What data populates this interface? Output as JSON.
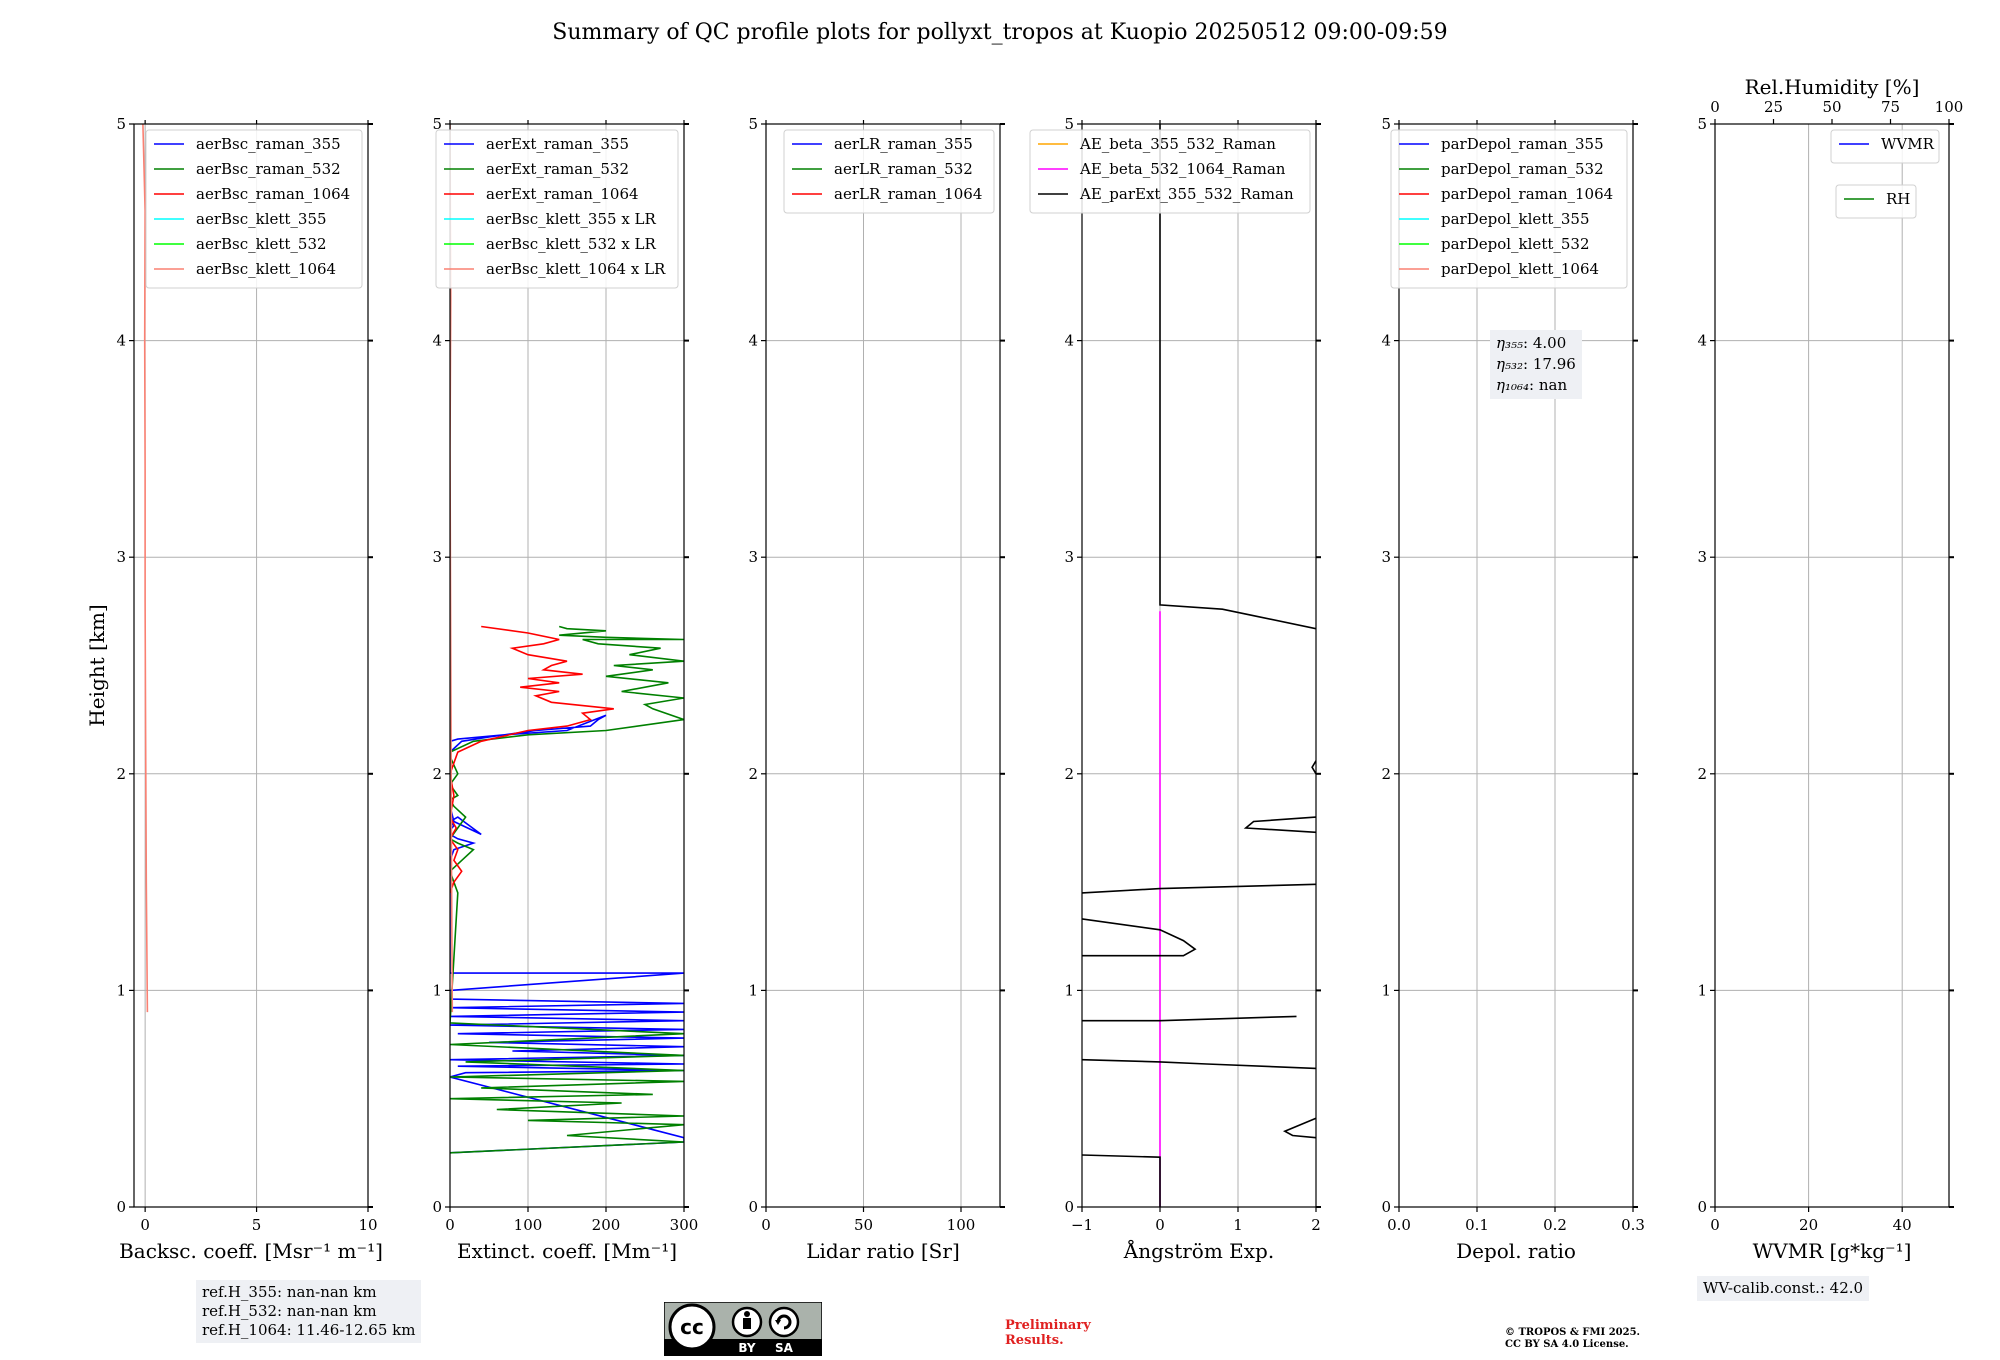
{
  "title": "Summary of QC profile plots for pollyxt_tropos at Kuopio 20250512 09:00-09:59",
  "colors": {
    "blue": "#0000ff",
    "green": "#008000",
    "red": "#ff0000",
    "cyan": "#00ffff",
    "lime": "#00ff00",
    "salmon": "#fa8072",
    "orange": "#ffa500",
    "magenta": "#ff00ff",
    "black": "#000000",
    "grid": "#b0b0b0"
  },
  "chart_data": [
    {
      "id": "backscatter",
      "type": "line",
      "xlabel": "Backsc. coeff. [Msr$^{-1}$ m$^{-1}$]",
      "xlabel_plain": "Backsc. coeff. [Msr⁻¹ m⁻¹]",
      "ylabel": "Height [km]",
      "xlim": [
        -0.5,
        10
      ],
      "ylim": [
        0,
        5
      ],
      "xticks": [
        0,
        5,
        10
      ],
      "xticklabels": [
        "0",
        "5",
        "10"
      ],
      "yticks": [
        0,
        1,
        2,
        3,
        4,
        5
      ],
      "yticklabels": [
        "0",
        "1",
        "2",
        "3",
        "4",
        "5"
      ],
      "legend": [
        "aerBsc_raman_355",
        "aerBsc_raman_532",
        "aerBsc_raman_1064",
        "aerBsc_klett_355",
        "aerBsc_klett_532",
        "aerBsc_klett_1064"
      ],
      "legend_colors": [
        "blue",
        "green",
        "red",
        "cyan",
        "lime",
        "salmon"
      ],
      "legend_position": "top-right",
      "series": [
        {
          "name": "aerBsc_klett_1064",
          "color": "salmon",
          "x": [
            0.1,
            0.05,
            0.02,
            0.0,
            0.0,
            -0.02,
            0.0,
            -0.1
          ],
          "y": [
            0.9,
            1.5,
            2.2,
            2.8,
            3.4,
            4.0,
            4.6,
            5.0
          ]
        }
      ]
    },
    {
      "id": "extinction",
      "type": "line",
      "xlabel": "Extinct. coeff. [Mm$^{-1}$]",
      "xlabel_plain": "Extinct. coeff. [Mm⁻¹]",
      "xlim": [
        0,
        300
      ],
      "ylim": [
        0,
        5
      ],
      "xticks": [
        0,
        100,
        200,
        300
      ],
      "xticklabels": [
        "0",
        "100",
        "200",
        "300"
      ],
      "yticks": [
        0,
        1,
        2,
        3,
        4,
        5
      ],
      "yticklabels": [
        "0",
        "1",
        "2",
        "3",
        "4",
        "5"
      ],
      "legend": [
        "aerExt_raman_355",
        "aerExt_raman_532",
        "aerExt_raman_1064",
        "aerBsc_klett_355 x LR",
        "aerBsc_klett_532 x LR",
        "aerBsc_klett_1064 x LR"
      ],
      "legend_colors": [
        "blue",
        "green",
        "red",
        "cyan",
        "lime",
        "salmon"
      ],
      "legend_position": "top-right",
      "series": [
        {
          "name": "aerExt_raman_355",
          "color": "blue",
          "x": [
            0,
            300,
            300,
            0,
            20,
            300,
            10,
            300,
            0,
            300,
            80,
            300,
            50,
            300,
            10,
            300,
            0,
            300,
            0,
            300,
            0,
            300,
            0,
            0,
            300,
            0,
            0,
            5,
            30,
            10,
            0,
            0,
            5,
            0,
            10,
            40,
            5,
            0,
            0,
            15,
            50,
            110,
            180,
            190,
            200,
            150,
            70,
            10,
            0
          ],
          "y": [
            0.25,
            0.3,
            0.32,
            0.6,
            0.62,
            0.63,
            0.65,
            0.66,
            0.68,
            0.7,
            0.72,
            0.74,
            0.76,
            0.78,
            0.8,
            0.82,
            0.84,
            0.86,
            0.88,
            0.9,
            0.92,
            0.94,
            0.96,
            1.0,
            1.08,
            1.08,
            1.6,
            1.65,
            1.68,
            1.7,
            1.72,
            1.74,
            1.76,
            1.78,
            1.8,
            1.72,
            1.78,
            1.85,
            2.1,
            2.15,
            2.17,
            2.2,
            2.22,
            2.25,
            2.27,
            2.2,
            2.18,
            2.16,
            2.15
          ]
        },
        {
          "name": "aerExt_raman_532",
          "color": "green",
          "x": [
            0,
            300,
            150,
            300,
            100,
            300,
            60,
            220,
            0,
            260,
            40,
            300,
            0,
            300,
            20,
            300,
            0,
            300,
            0,
            10,
            5,
            0,
            15,
            30,
            10,
            0,
            20,
            5,
            0,
            10,
            0,
            10,
            0,
            0,
            30,
            100,
            200,
            300,
            260,
            250,
            300,
            220,
            280,
            200,
            260,
            210,
            300,
            230,
            270,
            190,
            170,
            300,
            200,
            140,
            200,
            150,
            140
          ],
          "y": [
            0.25,
            0.3,
            0.33,
            0.38,
            0.4,
            0.42,
            0.45,
            0.48,
            0.5,
            0.52,
            0.55,
            0.58,
            0.6,
            0.63,
            0.67,
            0.7,
            0.75,
            0.8,
            0.85,
            1.45,
            1.5,
            1.55,
            1.6,
            1.65,
            1.68,
            1.7,
            1.8,
            1.85,
            1.88,
            1.9,
            1.95,
            2.0,
            2.08,
            2.1,
            2.15,
            2.18,
            2.2,
            2.25,
            2.3,
            2.32,
            2.35,
            2.38,
            2.42,
            2.45,
            2.48,
            2.5,
            2.52,
            2.55,
            2.58,
            2.6,
            2.62,
            2.62,
            2.63,
            2.64,
            2.66,
            2.67,
            2.68
          ]
        },
        {
          "name": "aerExt_raman_1064",
          "color": "red",
          "x": [
            0,
            5,
            15,
            5,
            10,
            0,
            8,
            0,
            5,
            0,
            10,
            40,
            100,
            150,
            180,
            170,
            210,
            130,
            110,
            140,
            90,
            140,
            100,
            170,
            120,
            130,
            150,
            100,
            80,
            120,
            140,
            100,
            40
          ],
          "y": [
            1.45,
            1.5,
            1.55,
            1.6,
            1.65,
            1.7,
            1.75,
            1.8,
            1.9,
            2.0,
            2.1,
            2.15,
            2.2,
            2.22,
            2.25,
            2.28,
            2.3,
            2.33,
            2.36,
            2.38,
            2.4,
            2.42,
            2.44,
            2.46,
            2.48,
            2.5,
            2.52,
            2.55,
            2.58,
            2.6,
            2.62,
            2.65,
            2.68
          ]
        },
        {
          "name": "aerBsc_klett_1064 x LR",
          "color": "salmon",
          "x": [
            3,
            2,
            1,
            0,
            1,
            0
          ],
          "y": [
            0.9,
            1.5,
            2.5,
            3.5,
            4.2,
            5.0
          ]
        }
      ]
    },
    {
      "id": "lidar-ratio",
      "type": "line",
      "xlabel": "Lidar ratio [Sr]",
      "xlim": [
        0,
        120
      ],
      "ylim": [
        0,
        5
      ],
      "xticks": [
        0,
        50,
        100
      ],
      "xticklabels": [
        "0",
        "50",
        "100"
      ],
      "yticks": [
        0,
        1,
        2,
        3,
        4,
        5
      ],
      "yticklabels": [
        "0",
        "1",
        "2",
        "3",
        "4",
        "5"
      ],
      "legend": [
        "aerLR_raman_355",
        "aerLR_raman_532",
        "aerLR_raman_1064"
      ],
      "legend_colors": [
        "blue",
        "green",
        "red"
      ],
      "legend_position": "top-right",
      "series": []
    },
    {
      "id": "angstrom",
      "type": "line",
      "xlabel": "Ångström Exp.",
      "xlim": [
        -1,
        2
      ],
      "ylim": [
        0,
        5
      ],
      "xticks": [
        -1,
        0,
        1,
        2
      ],
      "xticklabels": [
        "−1",
        "0",
        "1",
        "2"
      ],
      "yticks": [
        0,
        1,
        2,
        3,
        4,
        5
      ],
      "yticklabels": [
        "0",
        "1",
        "2",
        "3",
        "4",
        "5"
      ],
      "legend": [
        "AE_beta_355_532_Raman",
        "AE_beta_532_1064_Raman",
        "AE_parExt_355_532_Raman"
      ],
      "legend_colors": [
        "orange",
        "magenta",
        "black"
      ],
      "legend_position": "top-right",
      "series": [
        {
          "name": "AE_beta_532_1064_Raman",
          "color": "magenta",
          "x": [
            0,
            0
          ],
          "y": [
            0.0,
            2.75
          ]
        },
        {
          "name": "AE_parExt_355_532_Raman",
          "color": "black",
          "x": [
            0,
            0,
            -1,
            null,
            2,
            1.7,
            1.6,
            1.8,
            2,
            null,
            2,
            0.6,
            0,
            -1,
            null,
            1.75,
            0,
            -1,
            null,
            -1,
            0.3,
            0.45,
            0.3,
            0,
            -1,
            null,
            2,
            0,
            -1,
            null,
            2,
            1.1,
            1.2,
            2,
            null,
            2,
            1.95,
            2,
            null,
            2,
            1.2,
            0.8,
            0,
            0
          ],
          "y": [
            0.0,
            0.23,
            0.24,
            null,
            0.32,
            0.33,
            0.35,
            0.38,
            0.41,
            null,
            0.64,
            0.66,
            0.67,
            0.68,
            null,
            0.88,
            0.86,
            0.86,
            null,
            1.16,
            1.16,
            1.19,
            1.23,
            1.28,
            1.33,
            null,
            1.49,
            1.47,
            1.45,
            null,
            1.73,
            1.75,
            1.78,
            1.8,
            null,
            2.0,
            2.03,
            2.06,
            null,
            2.67,
            2.73,
            2.76,
            2.78,
            5.0
          ]
        }
      ]
    },
    {
      "id": "depol",
      "type": "line",
      "xlabel": "Depol. ratio",
      "xlim": [
        0,
        0.3
      ],
      "ylim": [
        0,
        5
      ],
      "xticks": [
        0,
        0.1,
        0.2,
        0.3
      ],
      "xticklabels": [
        "0.0",
        "0.1",
        "0.2",
        "0.3"
      ],
      "yticks": [
        0,
        1,
        2,
        3,
        4,
        5
      ],
      "yticklabels": [
        "0",
        "1",
        "2",
        "3",
        "4",
        "5"
      ],
      "legend": [
        "parDepol_raman_355",
        "parDepol_raman_532",
        "parDepol_raman_1064",
        "parDepol_klett_355",
        "parDepol_klett_532",
        "parDepol_klett_1064"
      ],
      "legend_colors": [
        "blue",
        "green",
        "red",
        "cyan",
        "lime",
        "salmon"
      ],
      "legend_position": "top-right",
      "series": []
    },
    {
      "id": "wvmr",
      "type": "line",
      "xlabel": "WVMR [$g*kg^{-1}$]",
      "xlabel_plain": "WVMR [g*kg⁻¹]",
      "top_xlabel": "Rel.Humidity [%]",
      "xlim": [
        0,
        50
      ],
      "ylim": [
        0,
        5
      ],
      "xticks": [
        0,
        20,
        40
      ],
      "xticklabels": [
        "0",
        "20",
        "40"
      ],
      "top_xlim": [
        0,
        100
      ],
      "top_xticks": [
        0,
        25,
        50,
        75,
        100
      ],
      "top_xticklabels": [
        "0",
        "25",
        "50",
        "75",
        "100"
      ],
      "yticks": [
        0,
        1,
        2,
        3,
        4,
        5
      ],
      "yticklabels": [
        "0",
        "1",
        "2",
        "3",
        "4",
        "5"
      ],
      "legend": [
        "WVMR"
      ],
      "legend_colors": [
        "blue"
      ],
      "legend_position": "top-right",
      "legend2": [
        "RH"
      ],
      "legend2_colors": [
        "green"
      ],
      "series": []
    }
  ],
  "annotations": {
    "ref_heights": [
      "ref.H_355: nan-nan km",
      "ref.H_532: nan-nan km",
      "ref.H_1064: 11.46-12.65 km"
    ],
    "eta_values": [
      {
        "label": "η₃₅₅",
        "value": ": 4.00"
      },
      {
        "label": "η₅₃₂",
        "value": ": 17.96"
      },
      {
        "label": "η₁₀₆₄",
        "value": ": nan"
      }
    ],
    "wv_calib": "WV-calib.const.: 42.0",
    "preliminary": [
      "Preliminary",
      "Results."
    ],
    "copyright": [
      "© TROPOS & FMI 2025.",
      "CC BY SA 4.0 License."
    ],
    "license_badge": {
      "cc": "cc",
      "by": "BY",
      "sa": "SA"
    }
  }
}
